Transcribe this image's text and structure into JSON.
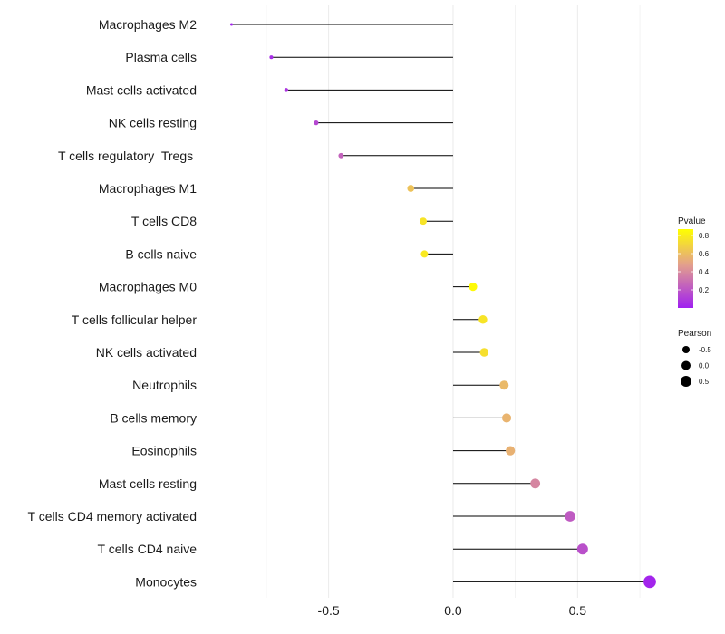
{
  "chart_data": {
    "type": "lollipop",
    "title": "",
    "xlabel": "",
    "ylabel": "",
    "xlim": [
      -0.99,
      0.83
    ],
    "x_ticks": [
      -0.5,
      0.0,
      0.5
    ],
    "x_tick_labels": [
      "-0.5",
      "0.0",
      "0.5"
    ],
    "grid": true,
    "points": [
      {
        "label": "Macrophages M2",
        "pearson": -0.89,
        "pvalue": 0.02
      },
      {
        "label": "Plasma cells",
        "pearson": -0.73,
        "pvalue": 0.05
      },
      {
        "label": "Mast cells activated",
        "pearson": -0.67,
        "pvalue": 0.08
      },
      {
        "label": "NK cells resting",
        "pearson": -0.55,
        "pvalue": 0.15
      },
      {
        "label": "T cells regulatory  Tregs ",
        "pearson": -0.45,
        "pvalue": 0.25
      },
      {
        "label": "Macrophages M1",
        "pearson": -0.17,
        "pvalue": 0.62
      },
      {
        "label": "T cells CD8",
        "pearson": -0.12,
        "pvalue": 0.76
      },
      {
        "label": "B cells naive",
        "pearson": -0.115,
        "pvalue": 0.78
      },
      {
        "label": "Macrophages M0",
        "pearson": 0.08,
        "pvalue": 0.85
      },
      {
        "label": "T cells follicular helper",
        "pearson": 0.12,
        "pvalue": 0.76
      },
      {
        "label": "NK cells activated",
        "pearson": 0.125,
        "pvalue": 0.74
      },
      {
        "label": "Neutrophils",
        "pearson": 0.205,
        "pvalue": 0.58
      },
      {
        "label": "B cells memory",
        "pearson": 0.215,
        "pvalue": 0.56
      },
      {
        "label": "Eosinophils",
        "pearson": 0.23,
        "pvalue": 0.55
      },
      {
        "label": "Mast cells resting",
        "pearson": 0.33,
        "pvalue": 0.38
      },
      {
        "label": "T cells CD4 memory activated",
        "pearson": 0.47,
        "pvalue": 0.22
      },
      {
        "label": "T cells CD4 naive",
        "pearson": 0.52,
        "pvalue": 0.18
      },
      {
        "label": "Monocytes",
        "pearson": 0.79,
        "pvalue": 0.02
      }
    ],
    "color_legend": {
      "title": "Pvalue",
      "ticks": [
        0.8,
        0.6,
        0.4,
        0.2
      ],
      "tick_labels": [
        "0.8",
        "0.6",
        "0.4",
        "0.2"
      ],
      "range": [
        0.0,
        0.87
      ],
      "color_low": "#a020f0",
      "color_mid": "#e0a090",
      "color_high": "#ffff00"
    },
    "size_legend": {
      "title": "Pearson",
      "entries": [
        {
          "value": -0.5,
          "label": "-0.5"
        },
        {
          "value": 0.0,
          "label": "0.0"
        },
        {
          "value": 0.5,
          "label": "0.5"
        }
      ],
      "color": "#000000"
    },
    "colors": {
      "stem": "#000000",
      "grid": "#ebebeb",
      "text": "#1a1a1a"
    }
  }
}
